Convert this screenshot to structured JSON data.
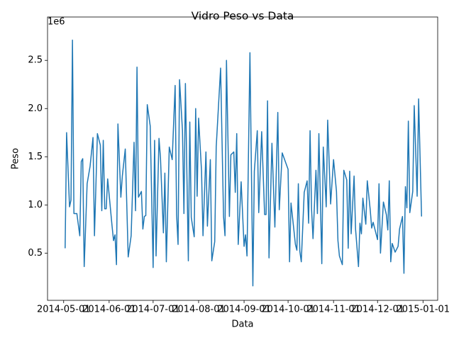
{
  "chart_data": {
    "type": "line",
    "title": "Vidro Peso vs Data",
    "x_label": "Data",
    "y_label": "Peso",
    "y_offset_label": "1e6",
    "x": [
      "2014-05-02",
      "2014-05-03",
      "2014-05-05",
      "2014-05-06",
      "2014-05-07",
      "2014-05-08",
      "2014-05-10",
      "2014-05-12",
      "2014-05-13",
      "2014-05-14",
      "2014-05-15",
      "2014-05-17",
      "2014-05-19",
      "2014-05-21",
      "2014-05-22",
      "2014-05-24",
      "2014-05-26",
      "2014-05-27",
      "2014-05-28",
      "2014-05-29",
      "2014-05-30",
      "2014-05-31",
      "2014-06-03",
      "2014-06-04",
      "2014-06-05",
      "2014-06-06",
      "2014-06-07",
      "2014-06-09",
      "2014-06-10",
      "2014-06-12",
      "2014-06-14",
      "2014-06-16",
      "2014-06-18",
      "2014-06-19",
      "2014-06-20",
      "2014-06-21",
      "2014-06-23",
      "2014-06-24",
      "2014-06-25",
      "2014-06-26",
      "2014-06-27",
      "2014-06-29",
      "2014-07-01",
      "2014-07-02",
      "2014-07-03",
      "2014-07-05",
      "2014-07-06",
      "2014-07-08",
      "2014-07-09",
      "2014-07-10",
      "2014-07-12",
      "2014-07-14",
      "2014-07-16",
      "2014-07-17",
      "2014-07-18",
      "2014-07-19",
      "2014-07-21",
      "2014-07-22",
      "2014-07-23",
      "2014-07-25",
      "2014-07-26",
      "2014-07-27",
      "2014-07-29",
      "2014-07-30",
      "2014-07-31",
      "2014-08-01",
      "2014-08-03",
      "2014-08-04",
      "2014-08-06",
      "2014-08-07",
      "2014-08-09",
      "2014-08-10",
      "2014-08-12",
      "2014-08-13",
      "2014-08-16",
      "2014-08-18",
      "2014-08-19",
      "2014-08-20",
      "2014-08-22",
      "2014-08-23",
      "2014-08-25",
      "2014-08-26",
      "2014-08-27",
      "2014-08-28",
      "2014-08-30",
      "2014-09-01",
      "2014-09-02",
      "2014-09-03",
      "2014-09-05",
      "2014-09-07",
      "2014-09-08",
      "2014-09-10",
      "2014-09-11",
      "2014-09-13",
      "2014-09-15",
      "2014-09-16",
      "2014-09-17",
      "2014-09-18",
      "2014-09-20",
      "2014-09-22",
      "2014-09-24",
      "2014-09-25",
      "2014-09-27",
      "2014-10-01",
      "2014-10-02",
      "2014-10-03",
      "2014-10-06",
      "2014-10-07",
      "2014-10-08",
      "2014-10-09",
      "2014-10-10",
      "2014-10-12",
      "2014-10-14",
      "2014-10-15",
      "2014-10-16",
      "2014-10-17",
      "2014-10-18",
      "2014-10-20",
      "2014-10-21",
      "2014-10-22",
      "2014-10-24",
      "2014-10-25",
      "2014-10-27",
      "2014-10-28",
      "2014-10-30",
      "2014-11-01",
      "2014-11-03",
      "2014-11-04",
      "2014-11-05",
      "2014-11-07",
      "2014-11-08",
      "2014-11-10",
      "2014-11-11",
      "2014-11-12",
      "2014-11-13",
      "2014-11-15",
      "2014-11-16",
      "2014-11-18",
      "2014-11-19",
      "2014-11-20",
      "2014-11-21",
      "2014-11-23",
      "2014-11-24",
      "2014-11-26",
      "2014-11-27",
      "2014-11-28",
      "2014-12-01",
      "2014-12-02",
      "2014-12-03",
      "2014-12-05",
      "2014-12-07",
      "2014-12-08",
      "2014-12-09",
      "2014-12-10",
      "2014-12-11",
      "2014-12-13",
      "2014-12-15",
      "2014-12-16",
      "2014-12-18",
      "2014-12-19",
      "2014-12-20",
      "2014-12-21",
      "2014-12-22",
      "2014-12-23",
      "2014-12-25",
      "2014-12-26",
      "2014-12-28",
      "2014-12-29",
      "2014-12-31"
    ],
    "series": [
      {
        "name": "Peso",
        "color": "#1f77b4",
        "values": [
          550000,
          1750000,
          980000,
          1050000,
          2710000,
          910000,
          910000,
          680000,
          1450000,
          1480000,
          360000,
          1220000,
          1400000,
          1700000,
          680000,
          1740000,
          1620000,
          940000,
          1670000,
          960000,
          960000,
          1270000,
          780000,
          630000,
          690000,
          380000,
          1840000,
          1080000,
          1300000,
          1580000,
          460000,
          680000,
          1650000,
          940000,
          2430000,
          1080000,
          1140000,
          750000,
          880000,
          890000,
          2040000,
          1820000,
          350000,
          1670000,
          470000,
          1690000,
          1490000,
          710000,
          1330000,
          410000,
          1600000,
          1470000,
          2240000,
          900000,
          590000,
          2300000,
          1770000,
          910000,
          2260000,
          420000,
          1860000,
          870000,
          670000,
          2000000,
          1090000,
          1900000,
          1350000,
          680000,
          1550000,
          780000,
          1470000,
          420000,
          620000,
          1600000,
          2420000,
          880000,
          680000,
          2500000,
          880000,
          1520000,
          1550000,
          1130000,
          1740000,
          590000,
          1240000,
          570000,
          690000,
          470000,
          2580000,
          160000,
          1350000,
          1770000,
          920000,
          1760000,
          900000,
          900000,
          2080000,
          450000,
          1640000,
          770000,
          1960000,
          950000,
          1540000,
          1370000,
          410000,
          1020000,
          590000,
          530000,
          1220000,
          520000,
          410000,
          1130000,
          1250000,
          810000,
          1770000,
          960000,
          650000,
          1360000,
          910000,
          1740000,
          390000,
          1600000,
          980000,
          1880000,
          1010000,
          1470000,
          1140000,
          630000,
          470000,
          380000,
          1360000,
          1260000,
          550000,
          1350000,
          700000,
          1300000,
          750000,
          360000,
          810000,
          700000,
          1070000,
          800000,
          1250000,
          950000,
          760000,
          820000,
          640000,
          1220000,
          500000,
          1030000,
          900000,
          740000,
          1250000,
          410000,
          600000,
          510000,
          570000,
          750000,
          880000,
          290000,
          1190000,
          970000,
          1870000,
          920000,
          1140000,
          2030000,
          1090000,
          2100000,
          880000
        ]
      }
    ],
    "xlim": [
      "2014-04-20",
      "2015-01-11"
    ],
    "xticks": [
      "2014-05-01",
      "2014-06-01",
      "2014-07-01",
      "2014-08-01",
      "2014-09-01",
      "2014-10-01",
      "2014-11-01",
      "2014-12-01",
      "2015-01-01"
    ],
    "ylim": [
      10000,
      2950000
    ],
    "yticks": [
      {
        "value": 500000,
        "label": "0.5"
      },
      {
        "value": 1000000,
        "label": "1.0"
      },
      {
        "value": 1500000,
        "label": "1.5"
      },
      {
        "value": 2000000,
        "label": "2.0"
      },
      {
        "value": 2500000,
        "label": "2.5"
      }
    ],
    "grid": false
  }
}
